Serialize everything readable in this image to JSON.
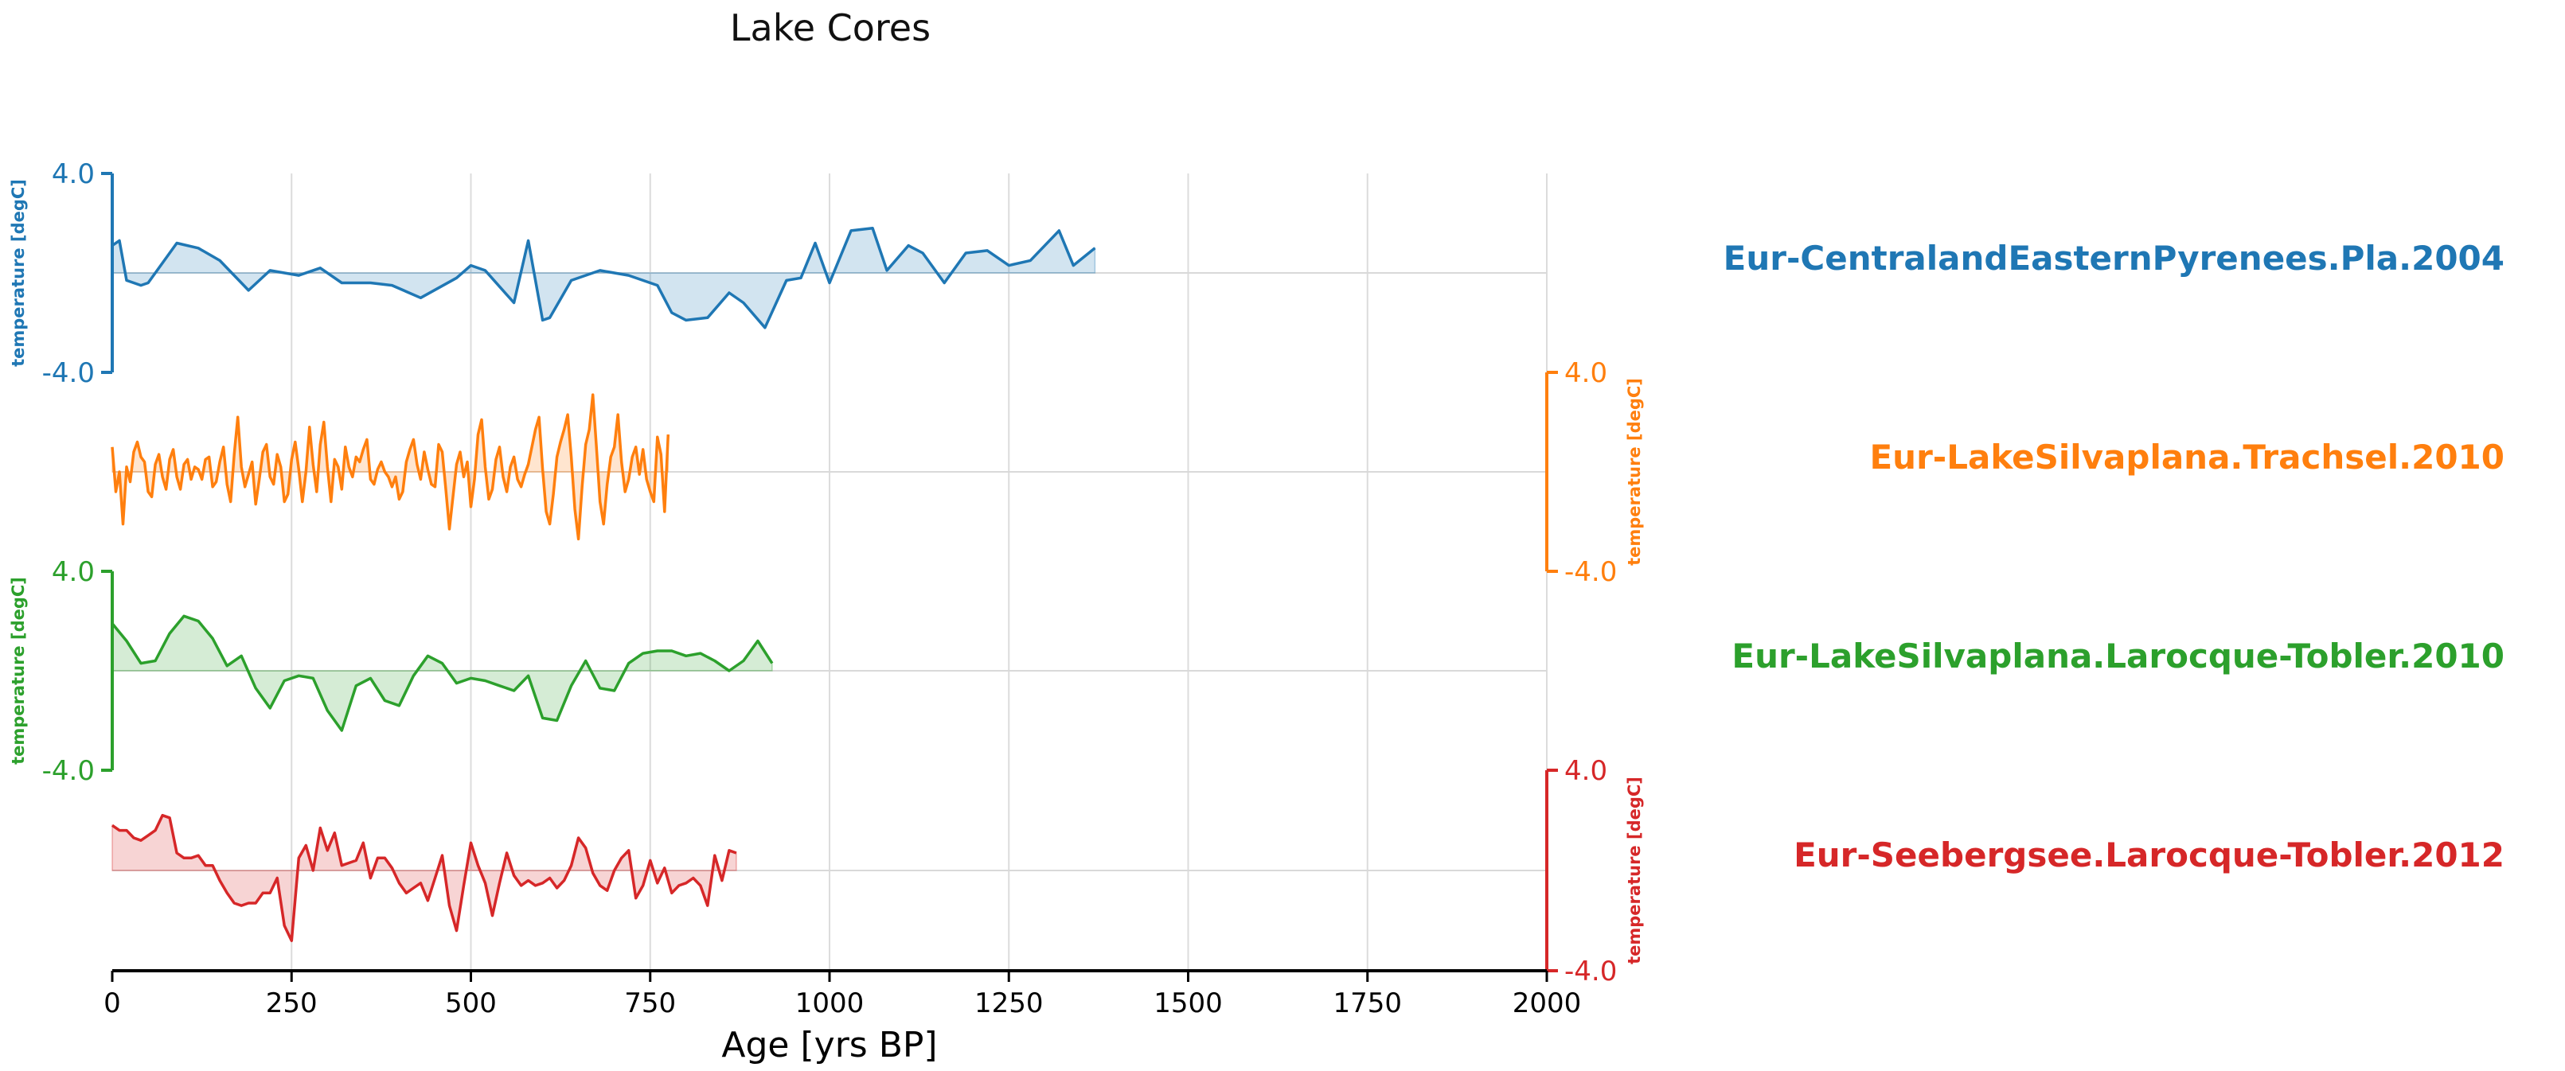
{
  "chart_data": {
    "type": "line",
    "title": "Lake Cores",
    "xlabel": "Age [yrs BP]",
    "xlim": [
      0,
      2000
    ],
    "xticks": [
      "0",
      "250",
      "500",
      "750",
      "1000",
      "1250",
      "1500",
      "1750",
      "2000"
    ],
    "grid": true,
    "series": [
      {
        "name": "Eur-CentralandEasternPyrenees.Pla.2004",
        "color": "#1f77b4",
        "axis_side": "left",
        "ylabel": "temperature [degC]",
        "ylim": [
          -4.0,
          4.0
        ],
        "ytick_labels": [
          "4.0",
          "-4.0"
        ],
        "baseline": 0,
        "x": [
          0,
          10,
          20,
          40,
          50,
          90,
          120,
          150,
          190,
          220,
          260,
          290,
          320,
          360,
          390,
          430,
          480,
          500,
          520,
          560,
          580,
          600,
          610,
          640,
          680,
          720,
          760,
          780,
          800,
          830,
          860,
          880,
          910,
          940,
          960,
          980,
          1000,
          1030,
          1060,
          1080,
          1110,
          1130,
          1160,
          1190,
          1220,
          1250,
          1280,
          1320,
          1340,
          1370
        ],
        "values": [
          1.1,
          1.3,
          -0.3,
          -0.5,
          -0.4,
          1.2,
          1.0,
          0.5,
          -0.7,
          0.1,
          -0.1,
          0.2,
          -0.4,
          -0.4,
          -0.5,
          -1.0,
          -0.2,
          0.3,
          0.1,
          -1.2,
          1.3,
          -1.9,
          -1.8,
          -0.3,
          0.1,
          -0.1,
          -0.5,
          -1.6,
          -1.9,
          -1.8,
          -0.8,
          -1.2,
          -2.2,
          -0.3,
          -0.2,
          1.2,
          -0.4,
          1.7,
          1.8,
          0.1,
          1.1,
          0.8,
          -0.4,
          0.8,
          0.9,
          0.3,
          0.5,
          1.7,
          0.3,
          1.0
        ]
      },
      {
        "name": "Eur-LakeSilvaplana.Trachsel.2010",
        "color": "#ff7f0e",
        "axis_side": "right",
        "ylabel": "temperature [degC]",
        "ylim": [
          -4.0,
          4.0
        ],
        "ytick_labels": [
          "4.0",
          "-4.0"
        ],
        "baseline": 0,
        "x": [
          0,
          5,
          10,
          15,
          20,
          25,
          30,
          35,
          40,
          45,
          50,
          55,
          60,
          65,
          70,
          75,
          80,
          85,
          90,
          95,
          100,
          105,
          110,
          115,
          120,
          125,
          130,
          135,
          140,
          145,
          150,
          155,
          160,
          165,
          170,
          175,
          180,
          185,
          190,
          195,
          200,
          205,
          210,
          215,
          220,
          225,
          230,
          235,
          240,
          245,
          250,
          255,
          260,
          265,
          270,
          275,
          280,
          285,
          290,
          295,
          300,
          305,
          310,
          315,
          320,
          325,
          330,
          335,
          340,
          345,
          350,
          355,
          360,
          365,
          370,
          375,
          380,
          385,
          390,
          395,
          400,
          405,
          410,
          415,
          420,
          425,
          430,
          435,
          440,
          445,
          450,
          455,
          460,
          465,
          470,
          475,
          480,
          485,
          490,
          495,
          500,
          505,
          510,
          515,
          520,
          525,
          530,
          535,
          540,
          545,
          550,
          555,
          560,
          565,
          570,
          575,
          580,
          585,
          590,
          595,
          600,
          605,
          610,
          615,
          620,
          625,
          630,
          635,
          640,
          645,
          650,
          655,
          660,
          665,
          670,
          675,
          680,
          685,
          690,
          695,
          700,
          705,
          710,
          715,
          720,
          725,
          730,
          735,
          740,
          745,
          750,
          755,
          760,
          765,
          770,
          775
        ],
        "values": [
          1.0,
          -0.8,
          0.0,
          -2.1,
          0.2,
          -0.4,
          0.8,
          1.2,
          0.6,
          0.4,
          -0.8,
          -1.0,
          0.3,
          0.7,
          -0.2,
          -0.7,
          0.5,
          0.9,
          -0.2,
          -0.7,
          0.3,
          0.5,
          -0.3,
          0.2,
          0.1,
          -0.3,
          0.5,
          0.6,
          -0.6,
          -0.4,
          0.4,
          1.0,
          -0.5,
          -1.2,
          0.7,
          2.2,
          0.2,
          -0.6,
          -0.1,
          0.4,
          -1.3,
          -0.3,
          0.8,
          1.1,
          -0.2,
          -0.5,
          0.7,
          0.2,
          -1.2,
          -0.9,
          0.5,
          1.2,
          0.1,
          -1.2,
          0.0,
          1.8,
          0.3,
          -0.8,
          1.1,
          2.0,
          0.2,
          -1.2,
          0.5,
          0.2,
          -0.7,
          1.0,
          0.2,
          -0.2,
          0.6,
          0.4,
          0.9,
          1.3,
          -0.3,
          -0.5,
          0.1,
          0.4,
          0.0,
          -0.2,
          -0.6,
          -0.2,
          -1.1,
          -0.8,
          0.4,
          0.9,
          1.3,
          0.3,
          -0.3,
          0.8,
          0.1,
          -0.5,
          -0.6,
          1.1,
          0.8,
          -0.7,
          -2.3,
          -1.0,
          0.3,
          0.8,
          -0.2,
          0.4,
          -1.4,
          -0.3,
          1.5,
          2.1,
          0.2,
          -1.1,
          -0.7,
          0.5,
          1.0,
          -0.2,
          -0.8,
          0.2,
          0.6,
          -0.3,
          -0.6,
          -0.1,
          0.3,
          1.0,
          1.7,
          2.2,
          0.1,
          -1.6,
          -2.1,
          -0.9,
          0.6,
          1.2,
          1.7,
          2.3,
          0.6,
          -1.5,
          -2.7,
          -0.6,
          1.1,
          1.7,
          3.1,
          1.0,
          -1.2,
          -2.1,
          -0.5,
          0.6,
          1.0,
          2.3,
          0.4,
          -0.8,
          -0.3,
          0.6,
          1.0,
          -0.1,
          0.9,
          -0.3,
          -0.8,
          -1.2,
          1.4,
          0.7,
          -1.6,
          1.5
        ]
      },
      {
        "name": "Eur-LakeSilvaplana.Larocque-Tobler.2010",
        "color": "#2ca02c",
        "axis_side": "left",
        "ylabel": "temperature [degC]",
        "ylim": [
          -4.0,
          4.0
        ],
        "ytick_labels": [
          "4.0",
          "-4.0"
        ],
        "baseline": 0,
        "x": [
          0,
          20,
          40,
          60,
          80,
          100,
          120,
          140,
          160,
          180,
          200,
          220,
          240,
          260,
          280,
          300,
          320,
          340,
          360,
          380,
          400,
          420,
          440,
          460,
          480,
          500,
          520,
          540,
          560,
          580,
          600,
          620,
          640,
          660,
          680,
          700,
          720,
          740,
          760,
          780,
          800,
          820,
          840,
          860,
          880,
          900,
          920
        ],
        "values": [
          1.9,
          1.2,
          0.3,
          0.4,
          1.5,
          2.2,
          2.0,
          1.3,
          0.2,
          0.6,
          -0.7,
          -1.5,
          -0.4,
          -0.2,
          -0.3,
          -1.6,
          -2.4,
          -0.6,
          -0.3,
          -1.2,
          -1.4,
          -0.2,
          0.6,
          0.3,
          -0.5,
          -0.3,
          -0.4,
          -0.6,
          -0.8,
          -0.2,
          -1.9,
          -2.0,
          -0.6,
          0.4,
          -0.7,
          -0.8,
          0.3,
          0.7,
          0.8,
          0.8,
          0.6,
          0.7,
          0.4,
          0.0,
          0.4,
          1.2,
          0.3
        ]
      },
      {
        "name": "Eur-Seebergsee.Larocque-Tobler.2012",
        "color": "#d62728",
        "axis_side": "right",
        "ylabel": "temperature [degC]",
        "ylim": [
          -4.0,
          4.0
        ],
        "ytick_labels": [
          "4.0",
          "-4.0"
        ],
        "baseline": 0,
        "x": [
          0,
          10,
          20,
          30,
          40,
          50,
          60,
          70,
          80,
          90,
          100,
          110,
          120,
          130,
          140,
          150,
          160,
          170,
          180,
          190,
          200,
          210,
          220,
          230,
          240,
          250,
          260,
          270,
          280,
          290,
          300,
          310,
          320,
          330,
          340,
          350,
          360,
          370,
          380,
          390,
          400,
          410,
          420,
          430,
          440,
          450,
          460,
          470,
          480,
          490,
          500,
          510,
          520,
          530,
          540,
          550,
          560,
          570,
          580,
          590,
          600,
          610,
          620,
          630,
          640,
          650,
          660,
          670,
          680,
          690,
          700,
          710,
          720,
          730,
          740,
          750,
          760,
          770,
          780,
          790,
          800,
          810,
          820,
          830,
          840,
          850,
          860,
          870
        ],
        "values": [
          1.8,
          1.6,
          1.6,
          1.3,
          1.2,
          1.4,
          1.6,
          2.2,
          2.1,
          0.7,
          0.5,
          0.5,
          0.6,
          0.2,
          0.2,
          -0.4,
          -0.9,
          -1.3,
          -1.4,
          -1.3,
          -1.3,
          -0.9,
          -0.9,
          -0.3,
          -2.2,
          -2.8,
          0.5,
          1.0,
          0.0,
          1.7,
          0.8,
          1.5,
          0.2,
          0.3,
          0.4,
          1.1,
          -0.3,
          0.5,
          0.5,
          0.1,
          -0.5,
          -0.9,
          -0.7,
          -0.5,
          -1.2,
          -0.3,
          0.6,
          -1.4,
          -2.4,
          -0.6,
          1.1,
          0.2,
          -0.5,
          -1.8,
          -0.5,
          0.7,
          -0.2,
          -0.6,
          -0.4,
          -0.6,
          -0.5,
          -0.3,
          -0.7,
          -0.4,
          0.2,
          1.3,
          0.9,
          -0.1,
          -0.6,
          -0.8,
          0.0,
          0.5,
          0.8,
          -1.1,
          -0.6,
          0.4,
          -0.5,
          0.1,
          -0.9,
          -0.6,
          -0.5,
          -0.3,
          -0.6,
          -1.4,
          0.6,
          -0.4,
          0.8,
          0.7
        ]
      }
    ]
  }
}
